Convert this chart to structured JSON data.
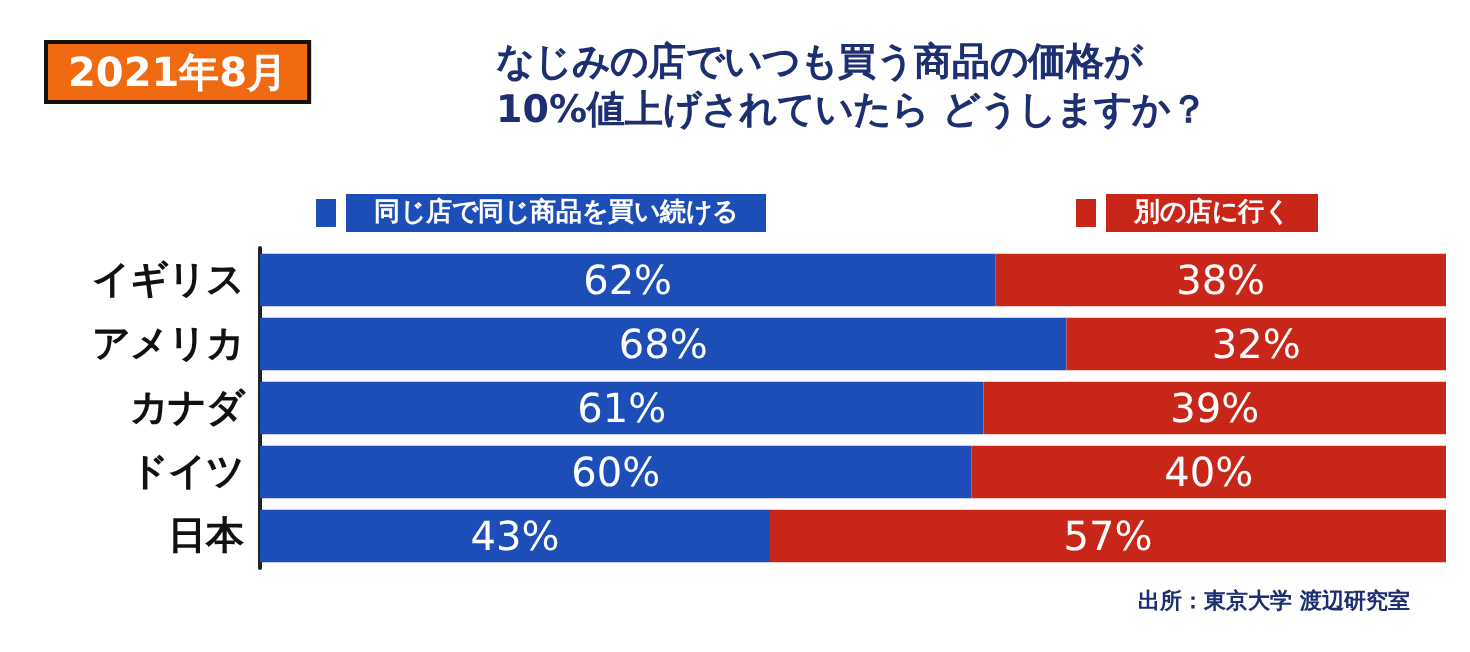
{
  "chart_data": {
    "type": "bar",
    "orientation": "horizontal",
    "stacked": true,
    "subtitle": "2021年8月",
    "title": "なじみの店でいつも買う商品の価格が\n10%値上げされていたら どうしますか？",
    "categories": [
      "イギリス",
      "アメリカ",
      "カナダ",
      "ドイツ",
      "日本"
    ],
    "series": [
      {
        "name": "同じ店で同じ商品を買い続ける",
        "color": "#1d4eb8",
        "values": [
          62,
          68,
          61,
          60,
          43
        ],
        "value_labels": [
          "62%",
          "68%",
          "61%",
          "60%",
          "43%"
        ]
      },
      {
        "name": "別の店に行く",
        "color": "#c9261a",
        "values": [
          38,
          32,
          39,
          40,
          57
        ],
        "value_labels": [
          "38%",
          "32%",
          "39%",
          "40%",
          "57%"
        ]
      }
    ],
    "xlim": [
      0,
      100
    ],
    "tick_labels": "y",
    "grid": false,
    "legend": "top",
    "annotations": [
      "出所：東京大学 渡辺研究室"
    ]
  }
}
